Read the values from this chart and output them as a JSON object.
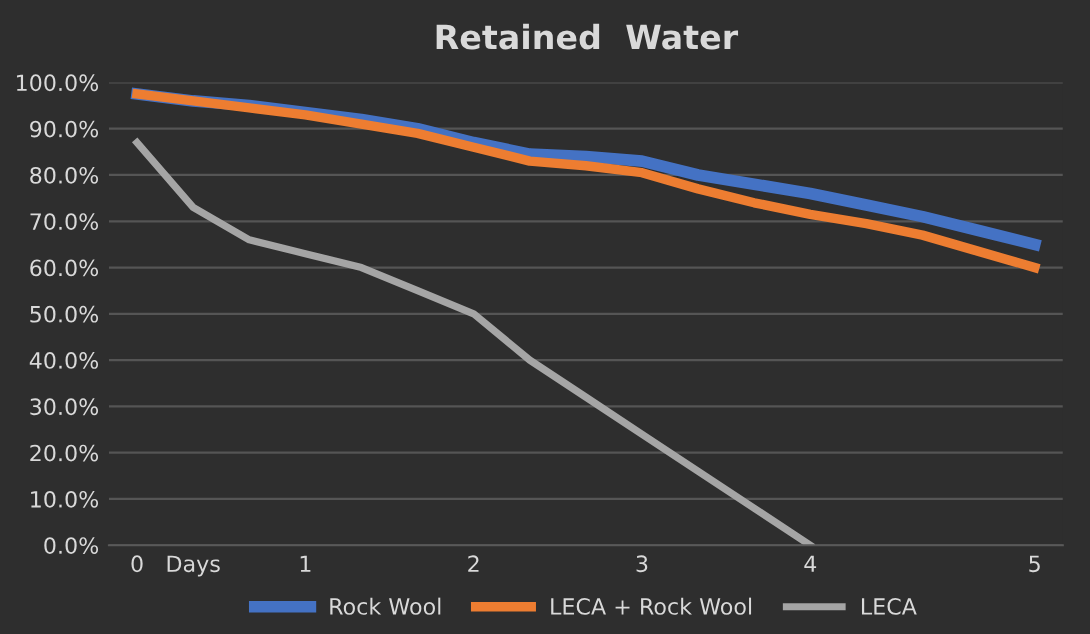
{
  "chart_data": {
    "type": "line",
    "title": "Retained  Water",
    "categories": [
      "0",
      "Days",
      null,
      "1",
      null,
      null,
      "2",
      null,
      null,
      "3",
      null,
      null,
      "4",
      null,
      null,
      null,
      "5"
    ],
    "series": [
      {
        "name": "Rock Wool",
        "color": "#4472c4",
        "values": [
          97.5,
          96,
          95,
          93.5,
          92,
          90,
          87,
          84.5,
          84,
          83,
          80,
          78,
          76,
          73.5,
          71,
          68,
          65
        ]
      },
      {
        "name": "LECA + Rock Wool",
        "color": "#ed7d31",
        "values": [
          97.5,
          96,
          94.5,
          93,
          91,
          89,
          86,
          83,
          82,
          80.5,
          77,
          74,
          71.5,
          69.5,
          67,
          63.5,
          60
        ]
      },
      {
        "name": "LECA",
        "color": "#a5a5a5",
        "values": [
          87,
          73,
          66,
          63,
          60,
          55,
          50,
          40,
          32,
          24,
          16,
          8,
          0,
          null,
          null,
          null,
          null
        ]
      }
    ],
    "ylim": [
      0,
      100
    ],
    "yticks": [
      {
        "value": 0,
        "label": "0.0%"
      },
      {
        "value": 10,
        "label": "10.0%"
      },
      {
        "value": 20,
        "label": "20.0%"
      },
      {
        "value": 30,
        "label": "30.0%"
      },
      {
        "value": 40,
        "label": "40.0%"
      },
      {
        "value": 50,
        "label": "50.0%"
      },
      {
        "value": 60,
        "label": "60.0%"
      },
      {
        "value": 70,
        "label": "70.0%"
      },
      {
        "value": 80,
        "label": "80.0%"
      },
      {
        "value": 90,
        "label": "90.0%"
      },
      {
        "value": 100,
        "label": "100.0%"
      }
    ],
    "grid": "y",
    "legend": "bottom",
    "marker": "none",
    "line_style": "solid"
  }
}
